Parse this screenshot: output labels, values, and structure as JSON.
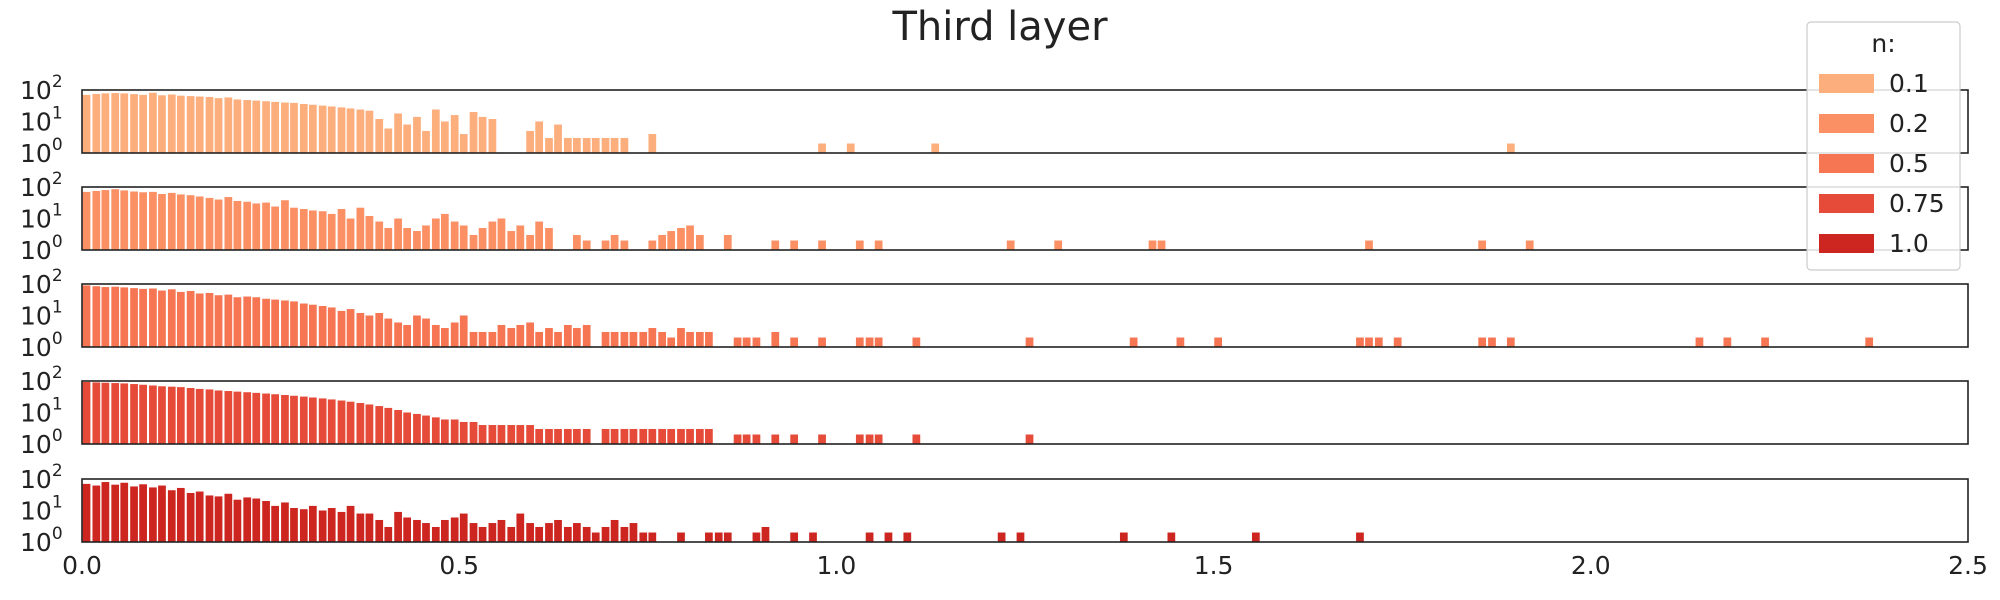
{
  "chart_data": {
    "type": "bar",
    "title": "Third layer",
    "x_tick_labels": [
      "0.0",
      "0.5",
      "1.0",
      "1.5",
      "2.0",
      "2.5"
    ],
    "xlim": [
      0,
      2.5
    ],
    "bin_width": 0.0125,
    "y_scale": "log",
    "y_tick_labels": [
      {
        "base": "10",
        "exp": "0"
      },
      {
        "base": "10",
        "exp": "1"
      },
      {
        "base": "10",
        "exp": "2"
      }
    ],
    "ylim": [
      1,
      100
    ],
    "grid": false,
    "legend": {
      "title": "n:",
      "placement": "top-right",
      "entries": [
        {
          "label": "0.1",
          "color": "#fcae7c"
        },
        {
          "label": "0.2",
          "color": "#fb9064"
        },
        {
          "label": "0.5",
          "color": "#f67552"
        },
        {
          "label": "0.75",
          "color": "#e64a38"
        },
        {
          "label": "1.0",
          "color": "#cd2620"
        }
      ]
    },
    "series": [
      {
        "label": "0.1",
        "color": "#fcae7c",
        "x": [
          0.006,
          0.019,
          0.031,
          0.044,
          0.056,
          0.069,
          0.081,
          0.094,
          0.106,
          0.119,
          0.131,
          0.144,
          0.156,
          0.169,
          0.181,
          0.194,
          0.206,
          0.219,
          0.231,
          0.244,
          0.256,
          0.269,
          0.281,
          0.294,
          0.306,
          0.319,
          0.331,
          0.344,
          0.356,
          0.369,
          0.381,
          0.394,
          0.406,
          0.419,
          0.431,
          0.444,
          0.456,
          0.469,
          0.481,
          0.494,
          0.506,
          0.519,
          0.531,
          0.544,
          0.594,
          0.606,
          0.619,
          0.631,
          0.644,
          0.656,
          0.669,
          0.681,
          0.694,
          0.706,
          0.719,
          0.756,
          0.981,
          1.019,
          1.131,
          1.894
        ],
        "y": [
          70,
          75,
          78,
          80,
          78,
          74,
          70,
          82,
          68,
          72,
          66,
          64,
          62,
          60,
          55,
          58,
          50,
          48,
          46,
          44,
          42,
          40,
          39,
          36,
          34,
          32,
          30,
          28,
          26,
          24,
          22,
          12,
          6,
          18,
          8,
          14,
          5,
          24,
          10,
          16,
          4,
          20,
          14,
          12,
          5,
          10,
          3,
          8,
          3,
          3,
          3,
          3,
          3,
          3,
          3,
          4,
          2,
          2,
          2,
          2
        ]
      },
      {
        "label": "0.2",
        "color": "#fb9064",
        "x": [
          0.006,
          0.019,
          0.031,
          0.044,
          0.056,
          0.069,
          0.081,
          0.094,
          0.106,
          0.119,
          0.131,
          0.144,
          0.156,
          0.169,
          0.181,
          0.194,
          0.206,
          0.219,
          0.231,
          0.244,
          0.256,
          0.269,
          0.281,
          0.294,
          0.306,
          0.319,
          0.331,
          0.344,
          0.356,
          0.369,
          0.381,
          0.394,
          0.406,
          0.419,
          0.431,
          0.444,
          0.456,
          0.469,
          0.481,
          0.494,
          0.506,
          0.519,
          0.531,
          0.544,
          0.556,
          0.569,
          0.581,
          0.594,
          0.606,
          0.619,
          0.656,
          0.669,
          0.694,
          0.706,
          0.719,
          0.756,
          0.769,
          0.781,
          0.794,
          0.806,
          0.819,
          0.856,
          0.919,
          0.944,
          0.981,
          1.031,
          1.056,
          1.231,
          1.294,
          1.419,
          1.431,
          1.706,
          1.856,
          1.919
        ],
        "y": [
          70,
          75,
          80,
          85,
          78,
          72,
          68,
          70,
          60,
          65,
          58,
          55,
          50,
          45,
          40,
          48,
          36,
          34,
          30,
          32,
          24,
          38,
          22,
          20,
          18,
          17,
          14,
          20,
          10,
          22,
          12,
          8,
          5,
          10,
          5,
          4,
          6,
          10,
          14,
          8,
          6,
          3,
          5,
          8,
          10,
          4,
          6,
          3,
          8,
          5,
          3,
          2,
          2,
          3,
          2,
          2,
          3,
          4,
          5,
          6,
          3,
          3,
          2,
          2,
          2,
          2,
          2,
          2,
          2,
          2,
          2,
          2,
          2,
          2
        ]
      },
      {
        "label": "0.5",
        "color": "#f67552",
        "x": [
          0.006,
          0.019,
          0.031,
          0.044,
          0.056,
          0.069,
          0.081,
          0.094,
          0.106,
          0.119,
          0.131,
          0.144,
          0.156,
          0.169,
          0.181,
          0.194,
          0.206,
          0.219,
          0.231,
          0.244,
          0.256,
          0.269,
          0.281,
          0.294,
          0.306,
          0.319,
          0.331,
          0.344,
          0.356,
          0.369,
          0.381,
          0.394,
          0.406,
          0.419,
          0.431,
          0.444,
          0.456,
          0.469,
          0.481,
          0.494,
          0.506,
          0.519,
          0.531,
          0.544,
          0.556,
          0.569,
          0.581,
          0.594,
          0.606,
          0.619,
          0.631,
          0.644,
          0.656,
          0.669,
          0.694,
          0.706,
          0.719,
          0.731,
          0.744,
          0.756,
          0.769,
          0.781,
          0.794,
          0.806,
          0.819,
          0.831,
          0.869,
          0.881,
          0.894,
          0.919,
          0.944,
          0.981,
          1.031,
          1.044,
          1.056,
          1.106,
          1.256,
          1.394,
          1.456,
          1.506,
          1.694,
          1.706,
          1.719,
          1.744,
          1.856,
          1.869,
          1.894,
          2.144,
          2.181,
          2.231,
          2.369
        ],
        "y": [
          90,
          85,
          80,
          82,
          78,
          74,
          70,
          72,
          62,
          68,
          56,
          60,
          50,
          52,
          44,
          46,
          38,
          40,
          38,
          34,
          32,
          30,
          28,
          24,
          22,
          20,
          18,
          14,
          16,
          12,
          10,
          12,
          8,
          6,
          5,
          10,
          8,
          5,
          4,
          6,
          10,
          3,
          3,
          3,
          5,
          4,
          5,
          6,
          3,
          4,
          3,
          5,
          4,
          5,
          3,
          3,
          3,
          3,
          3,
          4,
          3,
          2,
          4,
          3,
          3,
          3,
          2,
          2,
          2,
          3,
          2,
          2,
          2,
          2,
          2,
          2,
          2,
          2,
          2,
          2,
          2,
          2,
          2,
          2,
          2,
          2,
          2,
          2,
          2,
          2,
          2
        ]
      },
      {
        "label": "0.75",
        "color": "#e64a38",
        "x": [
          0.006,
          0.019,
          0.031,
          0.044,
          0.056,
          0.069,
          0.081,
          0.094,
          0.106,
          0.119,
          0.131,
          0.144,
          0.156,
          0.169,
          0.181,
          0.194,
          0.206,
          0.219,
          0.231,
          0.244,
          0.256,
          0.269,
          0.281,
          0.294,
          0.306,
          0.319,
          0.331,
          0.344,
          0.356,
          0.369,
          0.381,
          0.394,
          0.406,
          0.419,
          0.431,
          0.444,
          0.456,
          0.469,
          0.481,
          0.494,
          0.506,
          0.519,
          0.531,
          0.544,
          0.556,
          0.569,
          0.581,
          0.594,
          0.606,
          0.619,
          0.631,
          0.644,
          0.656,
          0.669,
          0.694,
          0.706,
          0.719,
          0.731,
          0.744,
          0.756,
          0.769,
          0.781,
          0.794,
          0.806,
          0.819,
          0.831,
          0.869,
          0.881,
          0.894,
          0.919,
          0.944,
          0.981,
          1.031,
          1.044,
          1.056,
          1.106,
          1.256
        ],
        "y": [
          95,
          90,
          88,
          86,
          84,
          80,
          76,
          72,
          68,
          66,
          64,
          60,
          56,
          54,
          50,
          48,
          46,
          44,
          42,
          40,
          38,
          36,
          34,
          32,
          30,
          28,
          26,
          24,
          22,
          20,
          18,
          16,
          14,
          12,
          10,
          9,
          8,
          7,
          6,
          6,
          5,
          5,
          4,
          4,
          4,
          4,
          4,
          4,
          3,
          3,
          3,
          3,
          3,
          3,
          3,
          3,
          3,
          3,
          3,
          3,
          3,
          3,
          3,
          3,
          3,
          3,
          2,
          2,
          2,
          2,
          2,
          2,
          2,
          2,
          2,
          2,
          2
        ]
      },
      {
        "label": "1.0",
        "color": "#cd2620",
        "x": [
          0.006,
          0.019,
          0.031,
          0.044,
          0.056,
          0.069,
          0.081,
          0.094,
          0.106,
          0.119,
          0.131,
          0.144,
          0.156,
          0.169,
          0.181,
          0.194,
          0.206,
          0.219,
          0.231,
          0.244,
          0.256,
          0.269,
          0.281,
          0.294,
          0.306,
          0.319,
          0.331,
          0.344,
          0.356,
          0.369,
          0.381,
          0.394,
          0.406,
          0.419,
          0.431,
          0.444,
          0.456,
          0.469,
          0.481,
          0.494,
          0.506,
          0.519,
          0.531,
          0.544,
          0.556,
          0.569,
          0.581,
          0.594,
          0.606,
          0.619,
          0.631,
          0.644,
          0.656,
          0.669,
          0.681,
          0.694,
          0.706,
          0.719,
          0.731,
          0.744,
          0.756,
          0.794,
          0.831,
          0.844,
          0.856,
          0.894,
          0.906,
          0.944,
          0.969,
          1.044,
          1.069,
          1.094,
          1.219,
          1.244,
          1.381,
          1.444,
          1.556,
          1.694
        ],
        "y": [
          70,
          62,
          80,
          66,
          76,
          58,
          68,
          54,
          62,
          44,
          52,
          36,
          40,
          30,
          28,
          34,
          22,
          26,
          24,
          20,
          14,
          18,
          12,
          11,
          14,
          10,
          12,
          9,
          14,
          8,
          8,
          5,
          3,
          9,
          6,
          5,
          4,
          3,
          5,
          6,
          8,
          4,
          3,
          4,
          5,
          3,
          8,
          4,
          3,
          4,
          5,
          3,
          4,
          3,
          2,
          3,
          5,
          3,
          4,
          2,
          2,
          2,
          2,
          2,
          2,
          2,
          3,
          2,
          2,
          2,
          2,
          2,
          2,
          2,
          2,
          2,
          2,
          2
        ]
      }
    ]
  }
}
